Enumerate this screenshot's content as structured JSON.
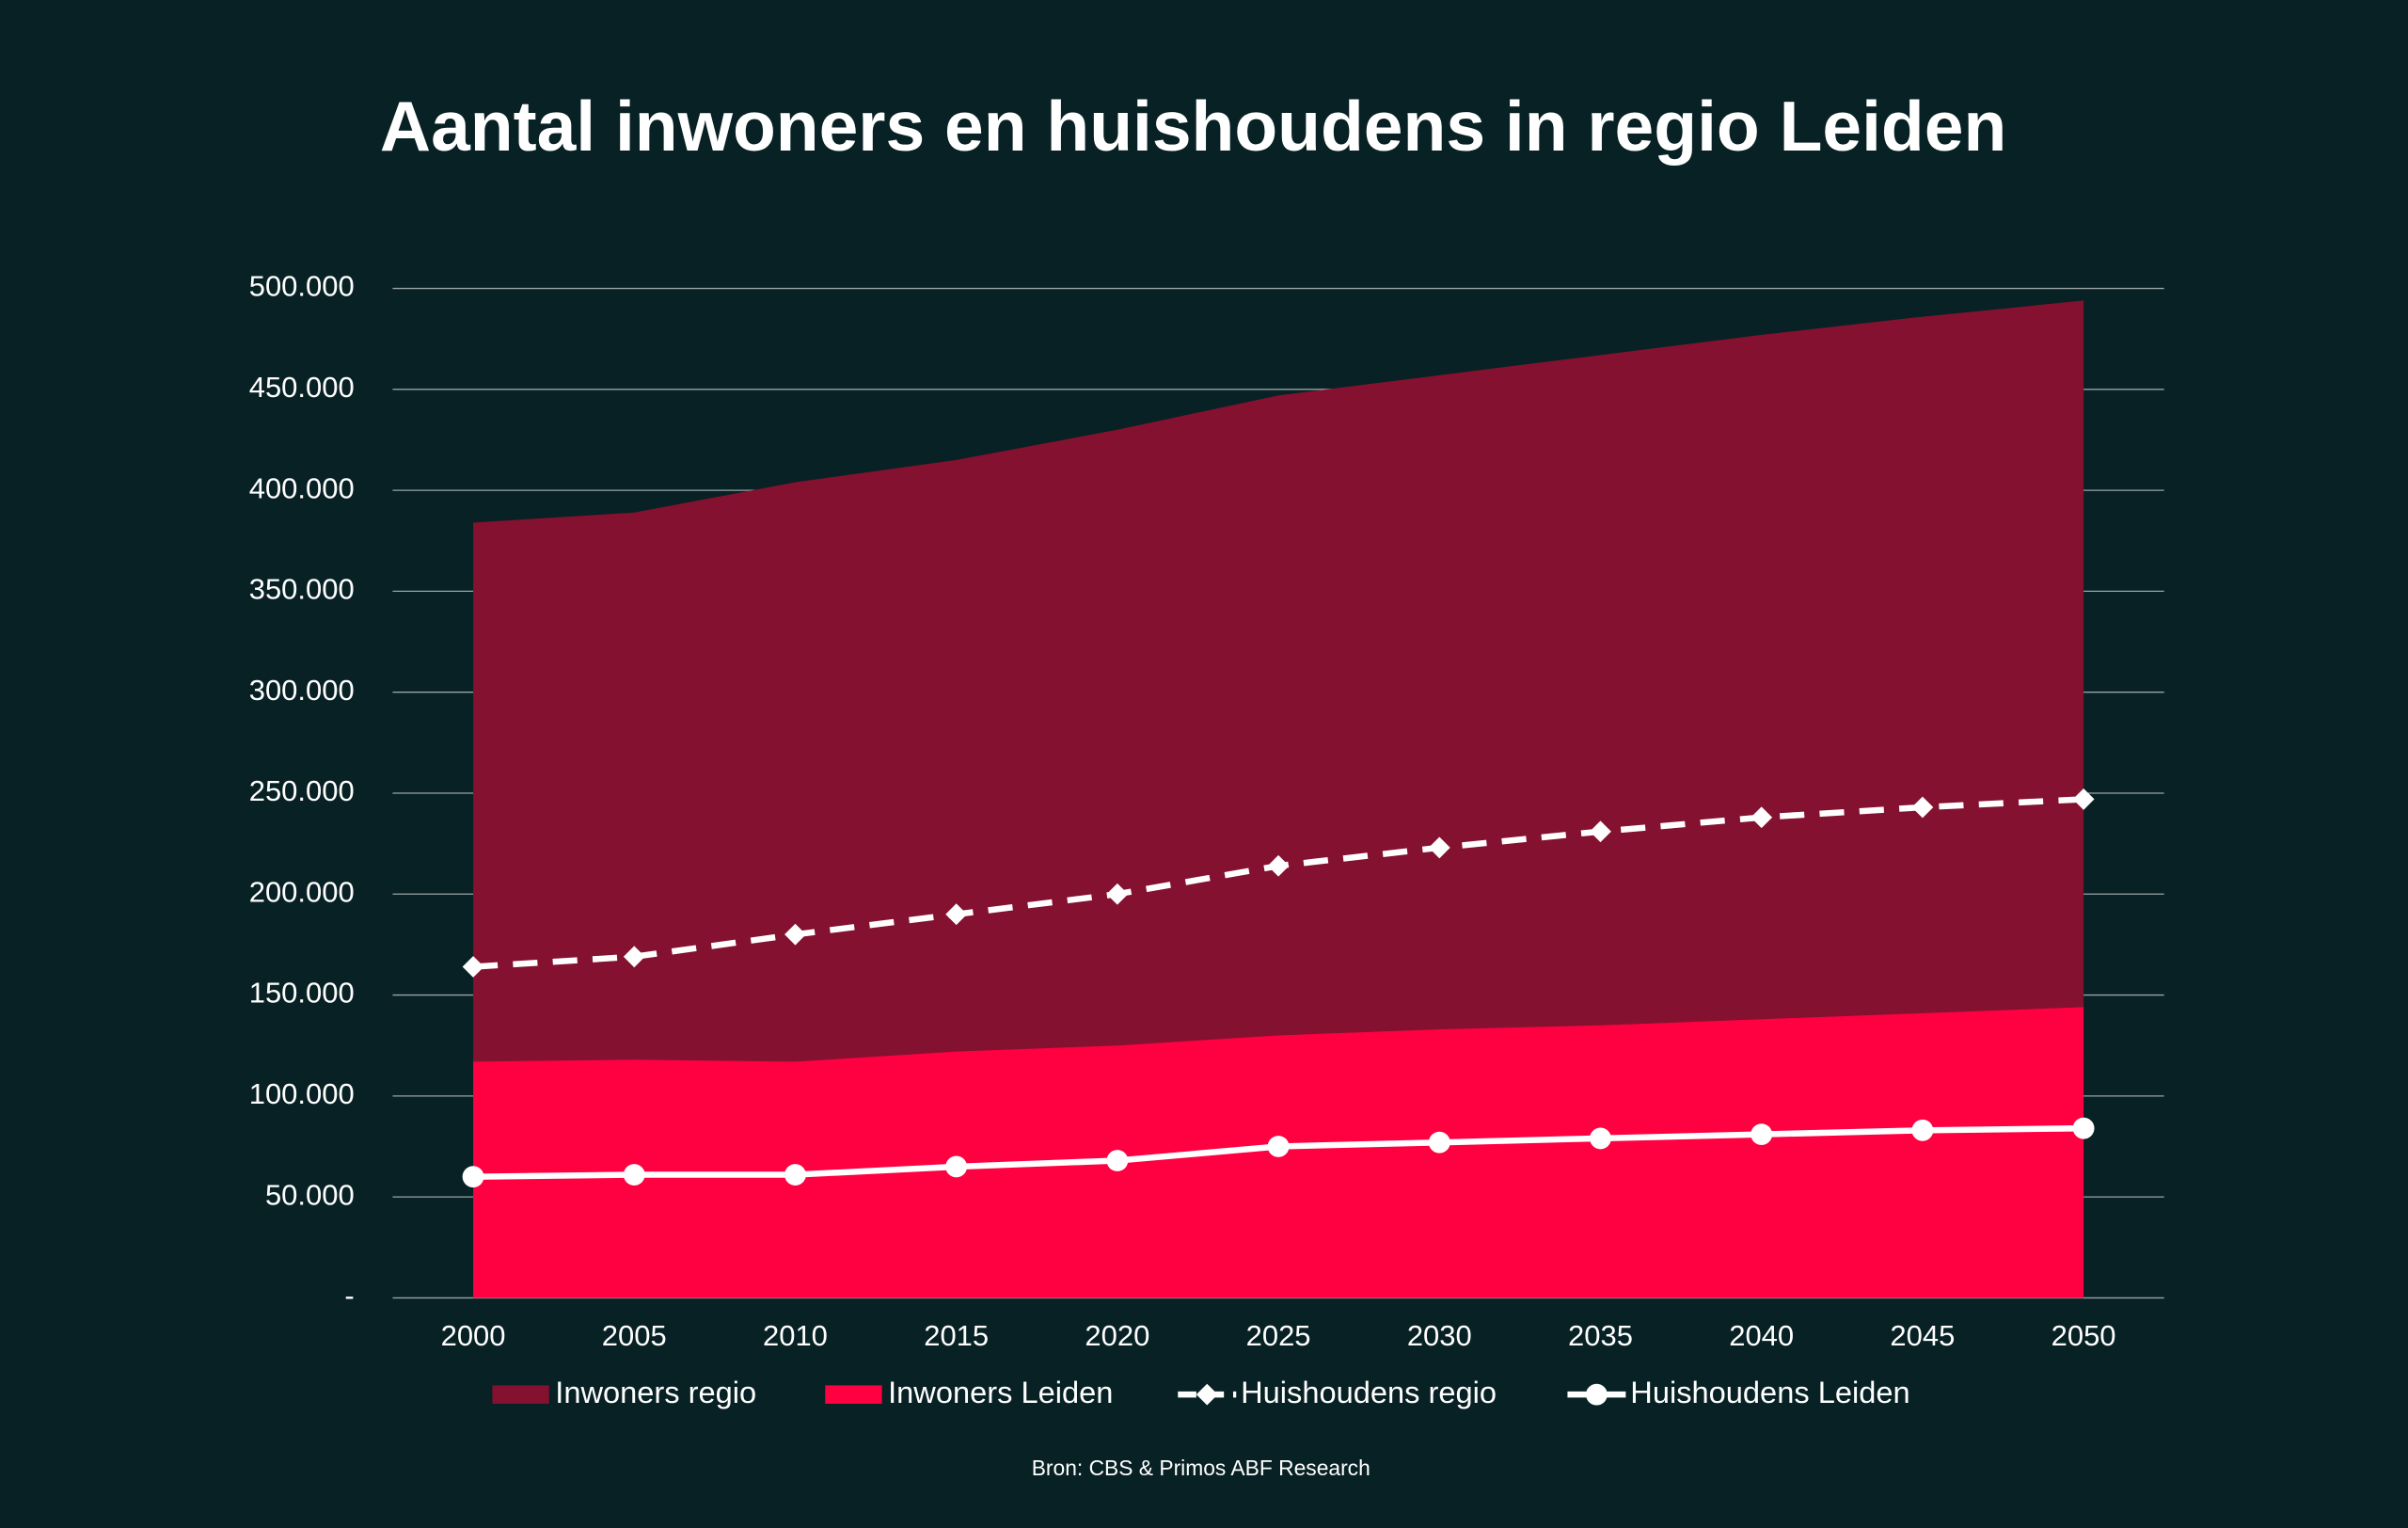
{
  "chart_data": {
    "type": "area",
    "title": "Aantal inwoners en huishoudens in regio Leiden",
    "source": "Bron: CBS & Primos ABF Research",
    "background": "#082124",
    "categories": [
      "2000",
      "2005",
      "2010",
      "2015",
      "2020",
      "2025",
      "2030",
      "2035",
      "2040",
      "2045",
      "2050"
    ],
    "series": [
      {
        "name": "Inwoners regio",
        "type": "area",
        "color": "#84112f",
        "values": [
          384000,
          389000,
          404000,
          415000,
          430000,
          447000,
          457000,
          467000,
          477000,
          486000,
          494000
        ]
      },
      {
        "name": "Inwoners Leiden",
        "type": "area",
        "color": "#ff0040",
        "values": [
          117000,
          118000,
          117000,
          122000,
          125000,
          130000,
          133000,
          135000,
          138000,
          141000,
          144000
        ]
      },
      {
        "name": "Huishoudens regio",
        "type": "line",
        "color": "#ffffff",
        "dashed": true,
        "marker": "diamond",
        "values": [
          164000,
          169000,
          180000,
          190000,
          200000,
          214000,
          223000,
          231000,
          238000,
          243000,
          247000
        ]
      },
      {
        "name": "Huishoudens Leiden",
        "type": "line",
        "color": "#ffffff",
        "dashed": false,
        "marker": "circle",
        "values": [
          60000,
          61000,
          61000,
          65000,
          68000,
          75000,
          77000,
          79000,
          81000,
          83000,
          84000
        ]
      }
    ],
    "ylim": [
      0,
      500000
    ],
    "yticks": [
      {
        "value": 0,
        "label": "-"
      },
      {
        "value": 50000,
        "label": "50.000"
      },
      {
        "value": 100000,
        "label": "100.000"
      },
      {
        "value": 150000,
        "label": "150.000"
      },
      {
        "value": 200000,
        "label": "200.000"
      },
      {
        "value": 250000,
        "label": "250.000"
      },
      {
        "value": 300000,
        "label": "300.000"
      },
      {
        "value": 350000,
        "label": "350.000"
      },
      {
        "value": 400000,
        "label": "400.000"
      },
      {
        "value": 450000,
        "label": "450.000"
      },
      {
        "value": 500000,
        "label": "500.000"
      }
    ],
    "grid": true
  }
}
